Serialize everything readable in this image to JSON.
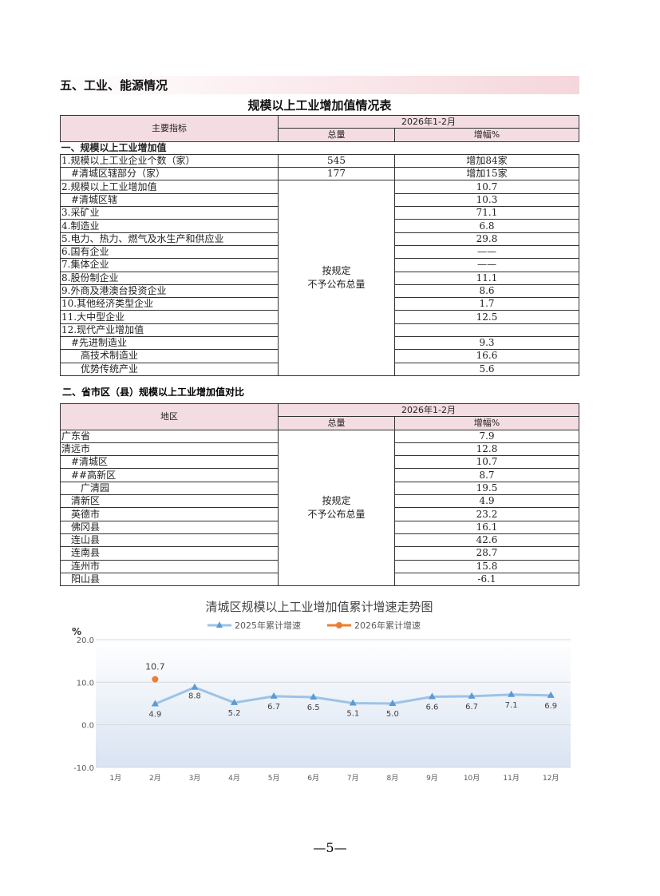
{
  "section_title": "五、工业、能源情况",
  "table1": {
    "title": "规模以上工业增加值情况表",
    "col_indicator": "主要指标",
    "period": "2026年1-2月",
    "col_total": "总量",
    "col_growth": "增幅%",
    "group": "一、规模以上工业增加值",
    "merged_note": [
      "按规定",
      "不予公布总量"
    ],
    "rows": [
      {
        "name": "1.规模以上工业企业个数（家）",
        "total": "545",
        "growth": "增加84家"
      },
      {
        "name": "　#清城区辖部分（家）",
        "total": "177",
        "growth": "增加15家"
      },
      {
        "name": "2.规模以上工业增加值",
        "growth": "10.7"
      },
      {
        "name": "　#清城区辖",
        "growth": "10.3"
      },
      {
        "name": "3.采矿业",
        "growth": "71.1"
      },
      {
        "name": "4.制造业",
        "growth": "6.8"
      },
      {
        "name": "5.电力、热力、燃气及水生产和供应业",
        "growth": "29.8"
      },
      {
        "name": "6.国有企业",
        "growth": "——"
      },
      {
        "name": "7.集体企业",
        "growth": "——"
      },
      {
        "name": "8.股份制企业",
        "growth": "11.1"
      },
      {
        "name": "9.外商及港澳台投资企业",
        "growth": "8.6"
      },
      {
        "name": "10.其他经济类型企业",
        "growth": "1.7"
      },
      {
        "name": "11.大中型企业",
        "growth": "12.5"
      },
      {
        "name": "12.现代产业增加值",
        "growth": ""
      },
      {
        "name": "　#先进制造业",
        "growth": "9.3"
      },
      {
        "name": "　　高技术制造业",
        "growth": "16.6"
      },
      {
        "name": "　　优势传统产业",
        "growth": "5.6"
      }
    ]
  },
  "table2": {
    "title": "二、省市区（县）规模以上工业增加值对比",
    "col_region": "地区",
    "period": "2026年1-2月",
    "col_total": "总量",
    "col_growth": "增幅%",
    "merged_note": [
      "按规定",
      "不予公布总量"
    ],
    "rows": [
      {
        "name": "广东省",
        "growth": "7.9"
      },
      {
        "name": "清远市",
        "growth": "12.8"
      },
      {
        "name": "　#清城区",
        "growth": "10.7"
      },
      {
        "name": "　##高新区",
        "growth": "8.7"
      },
      {
        "name": "　　广清园",
        "growth": "19.5"
      },
      {
        "name": "　清新区",
        "growth": "4.9"
      },
      {
        "name": "　英德市",
        "growth": "23.2"
      },
      {
        "name": "　佛冈县",
        "growth": "16.1"
      },
      {
        "name": "　连山县",
        "growth": "42.6"
      },
      {
        "name": "　连南县",
        "growth": "28.7"
      },
      {
        "name": "　连州市",
        "growth": "15.8"
      },
      {
        "name": "　阳山县",
        "growth": "-6.1"
      }
    ]
  },
  "chart_data": {
    "type": "line",
    "title": "清城区规模以上工业增加值累计增速走势图",
    "ylabel": "%",
    "ylim": [
      -10,
      20
    ],
    "yticks": [
      "20.0",
      "10.0",
      "0.0",
      "-10.0"
    ],
    "grid": true,
    "legend_position": "top",
    "categories": [
      "1月",
      "2月",
      "3月",
      "4月",
      "5月",
      "6月",
      "7月",
      "8月",
      "9月",
      "10月",
      "11月",
      "12月"
    ],
    "series": [
      {
        "name": "2025年累计增速",
        "color": "#9dc3e6",
        "marker": "triangle",
        "values": [
          null,
          4.9,
          8.8,
          5.2,
          6.7,
          6.5,
          5.1,
          5.0,
          6.6,
          6.7,
          7.1,
          6.9
        ]
      },
      {
        "name": "2026年累计增速",
        "color": "#ed7d31",
        "marker": "circle",
        "values": [
          null,
          10.7,
          null,
          null,
          null,
          null,
          null,
          null,
          null,
          null,
          null,
          null
        ]
      }
    ]
  },
  "page_number": "—5—"
}
